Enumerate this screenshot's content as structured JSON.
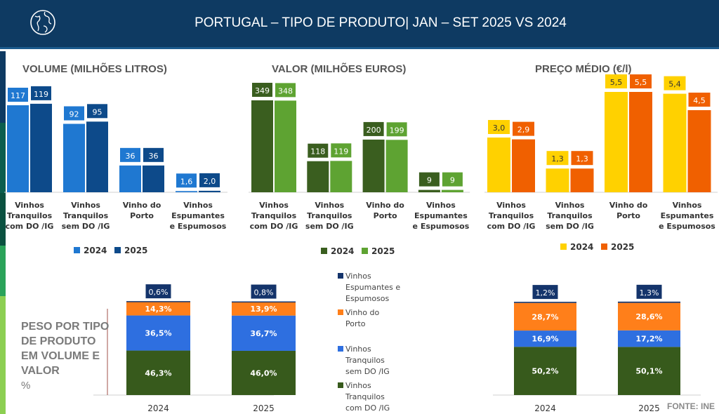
{
  "header": {
    "title": "PORTUGAL – TIPO DE PRODUTO| JAN – SET 2025 VS 2024",
    "icon": "globe-icon"
  },
  "source": "FONTE: INE",
  "peso": {
    "title": "PESO POR TIPO DE PRODUTO EM VOLUME E VALOR",
    "unit": "%"
  },
  "chart_data": [
    {
      "id": "volume",
      "type": "bar",
      "title": "VOLUME (MILHÕES LITROS)",
      "categories": [
        "Vinhos Tranquilos com DO /IG",
        "Vinhos Tranquilos sem DO /IG",
        "Vinho do Porto",
        "Vinhos Espumantes e Espumosos"
      ],
      "series": [
        {
          "name": "2024",
          "values": [
            117,
            92,
            36,
            1.6
          ],
          "labels": [
            "117",
            "92",
            "36",
            "1,6"
          ],
          "color": "#1f78d1"
        },
        {
          "name": "2025",
          "values": [
            119,
            95,
            36,
            2.0
          ],
          "labels": [
            "119",
            "95",
            "36",
            "2,0"
          ],
          "color": "#0d4a8a"
        }
      ]
    },
    {
      "id": "valor",
      "type": "bar",
      "title": "VALOR (MILHÕES EUROS)",
      "categories": [
        "Vinhos Tranquilos com DO /IG",
        "Vinhos Tranquilos sem DO /IG",
        "Vinho do Porto",
        "Vinhos Espumantes e Espumosos"
      ],
      "series": [
        {
          "name": "2024",
          "values": [
            349,
            118,
            200,
            9
          ],
          "labels": [
            "349",
            "118",
            "200",
            "9"
          ],
          "color": "#3a5e1f"
        },
        {
          "name": "2025",
          "values": [
            348,
            119,
            199,
            9
          ],
          "labels": [
            "348",
            "119",
            "199",
            "9"
          ],
          "color": "#5ea332"
        }
      ]
    },
    {
      "id": "preco",
      "type": "bar",
      "title": "PREÇO MÉDIO (€/l)",
      "categories": [
        "Vinhos Tranquilos com DO /IG",
        "Vinhos Tranquilos sem DO /IG",
        "Vinho do Porto",
        "Vinhos Espumantes e Espumosos"
      ],
      "series": [
        {
          "name": "2024",
          "values": [
            3.0,
            1.3,
            5.5,
            5.4
          ],
          "labels": [
            "3,0",
            "1,3",
            "5,5",
            "5,4"
          ],
          "color": "#ffd100"
        },
        {
          "name": "2025",
          "values": [
            2.9,
            1.3,
            5.5,
            4.5
          ],
          "labels": [
            "2,9",
            "1,3",
            "5,5",
            "4,5"
          ],
          "color": "#f06000"
        }
      ]
    },
    {
      "id": "peso-volume",
      "type": "bar",
      "stacked": true,
      "categories": [
        "2024",
        "2025"
      ],
      "series": [
        {
          "name": "Vinhos Tranquilos com DO /IG",
          "values": [
            46.3,
            46.0
          ],
          "labels": [
            "46,3%",
            "46,0%"
          ],
          "color": "#375a1c"
        },
        {
          "name": "Vinhos Tranquilos sem DO /IG",
          "values": [
            36.5,
            36.7
          ],
          "labels": [
            "36,5%",
            "36,7%"
          ],
          "color": "#2e6fe0"
        },
        {
          "name": "Vinho do Porto",
          "values": [
            14.3,
            13.9
          ],
          "labels": [
            "14,3%",
            "13,9%"
          ],
          "color": "#ff7f1a"
        },
        {
          "name": "Vinhos Espumantes e Espumosos",
          "values": [
            0.6,
            0.8
          ],
          "labels": [
            "0,6%",
            "0,8%"
          ],
          "color": "#14346b"
        }
      ]
    },
    {
      "id": "peso-valor",
      "type": "bar",
      "stacked": true,
      "categories": [
        "2024",
        "2025"
      ],
      "series": [
        {
          "name": "Vinhos Tranquilos com DO /IG",
          "values": [
            50.2,
            50.1
          ],
          "labels": [
            "50,2%",
            "50,1%"
          ],
          "color": "#375a1c"
        },
        {
          "name": "Vinhos Tranquilos sem DO /IG",
          "values": [
            16.9,
            17.2
          ],
          "labels": [
            "16,9%",
            "17,2%"
          ],
          "color": "#2e6fe0"
        },
        {
          "name": "Vinho do Porto",
          "values": [
            28.7,
            28.6
          ],
          "labels": [
            "28,7%",
            "28,6%"
          ],
          "color": "#ff7f1a"
        },
        {
          "name": "Vinhos Espumantes e Espumosos",
          "values": [
            1.2,
            1.3
          ],
          "labels": [
            "1,2%",
            "1,3%"
          ],
          "color": "#14346b"
        }
      ]
    }
  ]
}
